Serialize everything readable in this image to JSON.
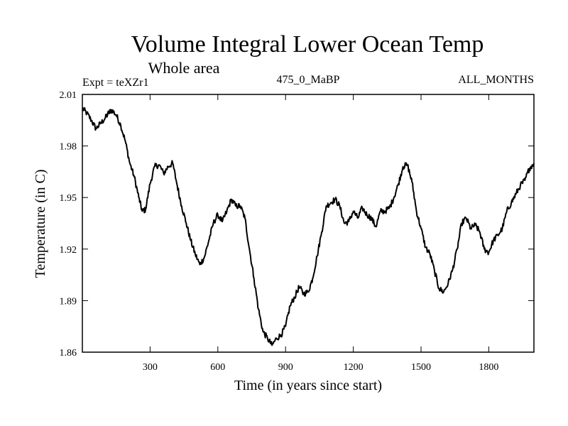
{
  "chart_data": {
    "type": "line",
    "title": "Volume Integral Lower Ocean Temp",
    "subtitle": "Whole area",
    "left_label": "Expt = teXZr1",
    "center_label": "475_0_MaBP",
    "right_label": "ALL_MONTHS",
    "xlabel": "Time (in years since start)",
    "ylabel": "Temperature (in C)",
    "xlim": [
      0,
      2000
    ],
    "ylim": [
      1.86,
      2.01
    ],
    "xticks": [
      300,
      600,
      900,
      1200,
      1500,
      1800
    ],
    "yticks": [
      1.86,
      1.89,
      1.92,
      1.95,
      1.98,
      2.01
    ],
    "xtick_labels": [
      "300",
      "600",
      "900",
      "1200",
      "1500",
      "1800"
    ],
    "ytick_labels": [
      "1.86",
      "1.89",
      "1.92",
      "1.95",
      "1.98",
      "2.01"
    ],
    "series": [
      {
        "name": "Volume Integral Lower Ocean Temp",
        "x": [
          0,
          20,
          40,
          60,
          80,
          100,
          115,
          130,
          150,
          170,
          190,
          210,
          230,
          250,
          265,
          280,
          300,
          320,
          340,
          360,
          380,
          400,
          420,
          440,
          460,
          480,
          500,
          520,
          540,
          560,
          580,
          600,
          620,
          640,
          660,
          680,
          700,
          720,
          740,
          760,
          780,
          800,
          820,
          840,
          860,
          880,
          900,
          920,
          940,
          960,
          980,
          1000,
          1020,
          1040,
          1060,
          1080,
          1100,
          1120,
          1140,
          1160,
          1180,
          1200,
          1220,
          1240,
          1260,
          1280,
          1300,
          1320,
          1340,
          1360,
          1380,
          1400,
          1420,
          1440,
          1460,
          1480,
          1500,
          1520,
          1540,
          1560,
          1580,
          1600,
          1620,
          1640,
          1660,
          1680,
          1700,
          1720,
          1740,
          1760,
          1780,
          1800,
          1820,
          1840,
          1860,
          1880,
          1900,
          1920,
          1940,
          1960,
          1980,
          2000
        ],
        "y": [
          2.002,
          1.999,
          1.995,
          1.99,
          1.993,
          1.996,
          1.999,
          2.001,
          1.998,
          1.992,
          1.983,
          1.97,
          1.962,
          1.95,
          1.942,
          1.943,
          1.958,
          1.968,
          1.969,
          1.964,
          1.968,
          1.97,
          1.957,
          1.945,
          1.935,
          1.925,
          1.917,
          1.911,
          1.915,
          1.925,
          1.935,
          1.94,
          1.936,
          1.942,
          1.949,
          1.945,
          1.945,
          1.938,
          1.92,
          1.903,
          1.885,
          1.872,
          1.868,
          1.864,
          1.868,
          1.87,
          1.875,
          1.887,
          1.892,
          1.898,
          1.894,
          1.895,
          1.903,
          1.916,
          1.93,
          1.945,
          1.947,
          1.949,
          1.945,
          1.935,
          1.936,
          1.942,
          1.938,
          1.944,
          1.94,
          1.938,
          1.933,
          1.942,
          1.942,
          1.944,
          1.95,
          1.958,
          1.968,
          1.969,
          1.959,
          1.942,
          1.932,
          1.921,
          1.917,
          1.907,
          1.897,
          1.895,
          1.9,
          1.908,
          1.92,
          1.935,
          1.938,
          1.932,
          1.934,
          1.93,
          1.92,
          1.918,
          1.925,
          1.928,
          1.932,
          1.942,
          1.947,
          1.952,
          1.957,
          1.96,
          1.967,
          1.97
        ]
      }
    ]
  }
}
